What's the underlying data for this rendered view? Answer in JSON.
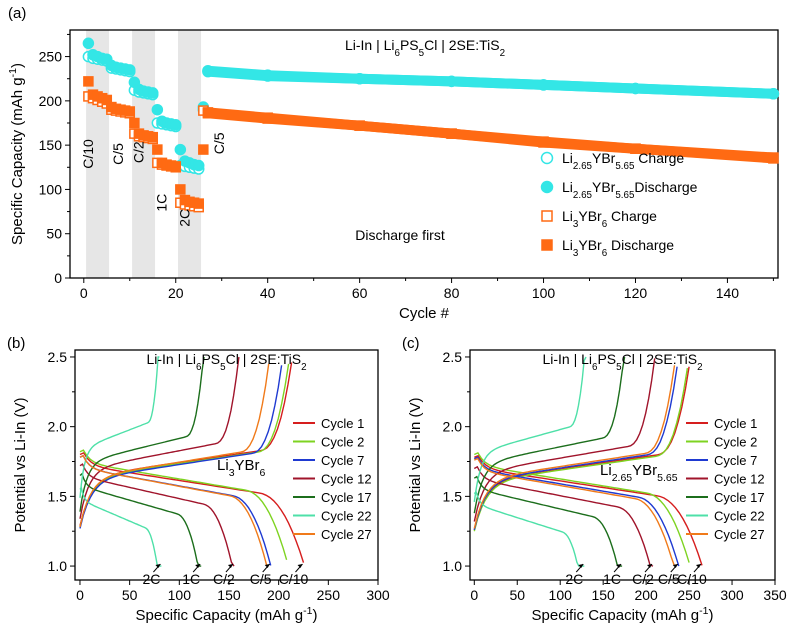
{
  "chart_data": [
    {
      "panel": "(a)",
      "type": "scatter",
      "title": "Li-In | Li6PS5Cl | 2SE:TiS2",
      "xlabel": "Cycle #",
      "ylabel": "Specific Capacity (mAh g-1)",
      "xlim": [
        -3,
        151
      ],
      "ylim": [
        0,
        280
      ],
      "xticks": [
        0,
        20,
        40,
        60,
        80,
        100,
        120,
        140
      ],
      "yticks": [
        0,
        50,
        100,
        150,
        200,
        250
      ],
      "annotation": "Discharge first",
      "rate_bands": [
        [
          0.5,
          5.5
        ],
        [
          10.5,
          15.5
        ],
        [
          20.5,
          25.5
        ]
      ],
      "rate_labels": [
        "C/10",
        "C/5",
        "C/2",
        "1C",
        "2C",
        "C/5"
      ],
      "legend": [
        "Li2.65YBr5.65 Charge",
        "Li2.65YBr5.65Discharge",
        "Li3YBr6 Charge",
        "Li3YBr6 Discharge"
      ],
      "colors": {
        "cyan": "#33e6e6",
        "orange": "#ff6a13",
        "band": "#e6e6e6"
      },
      "series": [
        {
          "name": "Li2.65YBr5.65 Charge",
          "marker": "circle-open",
          "color": "cyan",
          "x": [
            1,
            2,
            3,
            4,
            5,
            6,
            7,
            8,
            9,
            10,
            11,
            12,
            13,
            14,
            15,
            16,
            17,
            18,
            19,
            20,
            21,
            22,
            23,
            24,
            25,
            26,
            27,
            40,
            60,
            80,
            100,
            120,
            150
          ],
          "y": [
            250,
            248,
            247,
            246,
            245,
            237,
            236,
            235,
            234,
            233,
            212,
            210,
            209,
            208,
            207,
            175,
            174,
            173,
            172,
            171,
            127,
            126,
            125,
            124,
            123,
            190,
            233,
            228,
            225,
            222,
            218,
            214,
            208
          ]
        },
        {
          "name": "Li2.65YBr5.65Discharge",
          "marker": "circle-filled",
          "color": "cyan",
          "x": [
            1,
            2,
            3,
            4,
            5,
            6,
            7,
            8,
            9,
            10,
            11,
            12,
            13,
            14,
            15,
            16,
            17,
            18,
            19,
            20,
            21,
            22,
            23,
            24,
            25,
            26,
            27,
            40,
            60,
            80,
            100,
            120,
            150
          ],
          "y": [
            265,
            252,
            250,
            248,
            247,
            240,
            238,
            237,
            236,
            235,
            221,
            213,
            211,
            210,
            209,
            190,
            177,
            175,
            174,
            173,
            145,
            132,
            130,
            128,
            127,
            193,
            234,
            229,
            225,
            222,
            218,
            214,
            208
          ]
        },
        {
          "name": "Li3YBr6 Charge",
          "marker": "square-open",
          "color": "orange",
          "x": [
            1,
            2,
            3,
            4,
            5,
            6,
            7,
            8,
            9,
            10,
            11,
            12,
            13,
            14,
            15,
            16,
            17,
            18,
            19,
            20,
            21,
            22,
            23,
            24,
            25,
            26,
            27,
            40,
            60,
            80,
            100,
            120,
            150
          ],
          "y": [
            205,
            203,
            201,
            199,
            197,
            190,
            189,
            188,
            187,
            186,
            163,
            160,
            159,
            158,
            157,
            130,
            128,
            127,
            126,
            125,
            85,
            83,
            82,
            81,
            80,
            189,
            186,
            180,
            172,
            163,
            153,
            146,
            136
          ]
        },
        {
          "name": "Li3YBr6 Discharge",
          "marker": "square-filled",
          "color": "orange",
          "x": [
            1,
            2,
            3,
            4,
            5,
            6,
            7,
            8,
            9,
            10,
            11,
            12,
            13,
            14,
            15,
            16,
            17,
            18,
            19,
            20,
            21,
            22,
            23,
            24,
            25,
            26,
            27,
            40,
            60,
            80,
            100,
            120,
            150
          ],
          "y": [
            222,
            207,
            205,
            203,
            201,
            193,
            191,
            190,
            189,
            188,
            175,
            163,
            161,
            160,
            159,
            145,
            130,
            128,
            127,
            126,
            100,
            88,
            86,
            85,
            84,
            145,
            187,
            181,
            172,
            163,
            154,
            146,
            135
          ]
        }
      ]
    },
    {
      "panel": "(b)",
      "type": "line",
      "title": "Li-In | Li6PS5Cl | 2SE:TiS2",
      "label": "Li3YBr6",
      "xlabel": "Specific Capacity (mAh g-1)",
      "ylabel": "Potential vs Li-In (V)",
      "xlim": [
        -5,
        300
      ],
      "ylim": [
        0.9,
        2.55
      ],
      "xticks": [
        0,
        50,
        100,
        150,
        200,
        250,
        300
      ],
      "yticks": [
        1.0,
        1.5,
        2.0,
        2.5
      ],
      "rate_arrows": [
        "2C",
        "1C",
        "C/2",
        "C/5",
        "C/10"
      ],
      "series": [
        {
          "name": "Cycle 1",
          "color": "#d61e1e",
          "discharge_capacity": 225,
          "charge_capacity": 213,
          "discharge_plateau": 1.6,
          "charge_plateau": 1.75
        },
        {
          "name": "Cycle 2",
          "color": "#7ed321",
          "discharge_capacity": 208,
          "charge_capacity": 210,
          "discharge_plateau": 1.62,
          "charge_plateau": 1.74
        },
        {
          "name": "Cycle 7",
          "color": "#1f3ad1",
          "discharge_capacity": 192,
          "charge_capacity": 203,
          "discharge_plateau": 1.58,
          "charge_plateau": 1.73
        },
        {
          "name": "Cycle 12",
          "color": "#a0142b",
          "discharge_capacity": 155,
          "charge_capacity": 160,
          "discharge_plateau": 1.52,
          "charge_plateau": 1.8
        },
        {
          "name": "Cycle 17",
          "color": "#1c6e1c",
          "discharge_capacity": 122,
          "charge_capacity": 125,
          "discharge_plateau": 1.45,
          "charge_plateau": 1.85
        },
        {
          "name": "Cycle 22",
          "color": "#4ee0a8",
          "discharge_capacity": 82,
          "charge_capacity": 80,
          "discharge_plateau": 1.35,
          "charge_plateau": 1.95
        },
        {
          "name": "Cycle 27",
          "color": "#f07a1a",
          "discharge_capacity": 188,
          "charge_capacity": 190,
          "discharge_plateau": 1.58,
          "charge_plateau": 1.74
        }
      ]
    },
    {
      "panel": "(c)",
      "type": "line",
      "title": "Li-In | Li6PS5Cl | 2SE:TiS2",
      "label": "Li2.65YBr5.65",
      "xlabel": "Specific Capacity (mAh g-1)",
      "ylabel": "Potential vs Li-In (V)",
      "xlim": [
        -5,
        350
      ],
      "ylim": [
        0.9,
        2.55
      ],
      "xticks": [
        0,
        50,
        100,
        150,
        200,
        250,
        300,
        350
      ],
      "yticks": [
        1.0,
        1.5,
        2.0,
        2.5
      ],
      "rate_arrows": [
        "2C",
        "1C",
        "C/2",
        "C/5",
        "C/10"
      ],
      "series": [
        {
          "name": "Cycle 1",
          "color": "#d61e1e",
          "discharge_capacity": 265,
          "charge_capacity": 250,
          "discharge_plateau": 1.58,
          "charge_plateau": 1.72
        },
        {
          "name": "Cycle 2",
          "color": "#7ed321",
          "discharge_capacity": 250,
          "charge_capacity": 248,
          "discharge_plateau": 1.6,
          "charge_plateau": 1.71
        },
        {
          "name": "Cycle 7",
          "color": "#1f3ad1",
          "discharge_capacity": 238,
          "charge_capacity": 236,
          "discharge_plateau": 1.57,
          "charge_plateau": 1.72
        },
        {
          "name": "Cycle 12",
          "color": "#a0142b",
          "discharge_capacity": 208,
          "charge_capacity": 210,
          "discharge_plateau": 1.5,
          "charge_plateau": 1.78
        },
        {
          "name": "Cycle 17",
          "color": "#1c6e1c",
          "discharge_capacity": 172,
          "charge_capacity": 175,
          "discharge_plateau": 1.43,
          "charge_plateau": 1.84
        },
        {
          "name": "Cycle 22",
          "color": "#4ee0a8",
          "discharge_capacity": 128,
          "charge_capacity": 130,
          "discharge_plateau": 1.32,
          "charge_plateau": 1.92
        },
        {
          "name": "Cycle 27",
          "color": "#f07a1a",
          "discharge_capacity": 233,
          "charge_capacity": 233,
          "discharge_plateau": 1.56,
          "charge_plateau": 1.73
        }
      ]
    }
  ]
}
